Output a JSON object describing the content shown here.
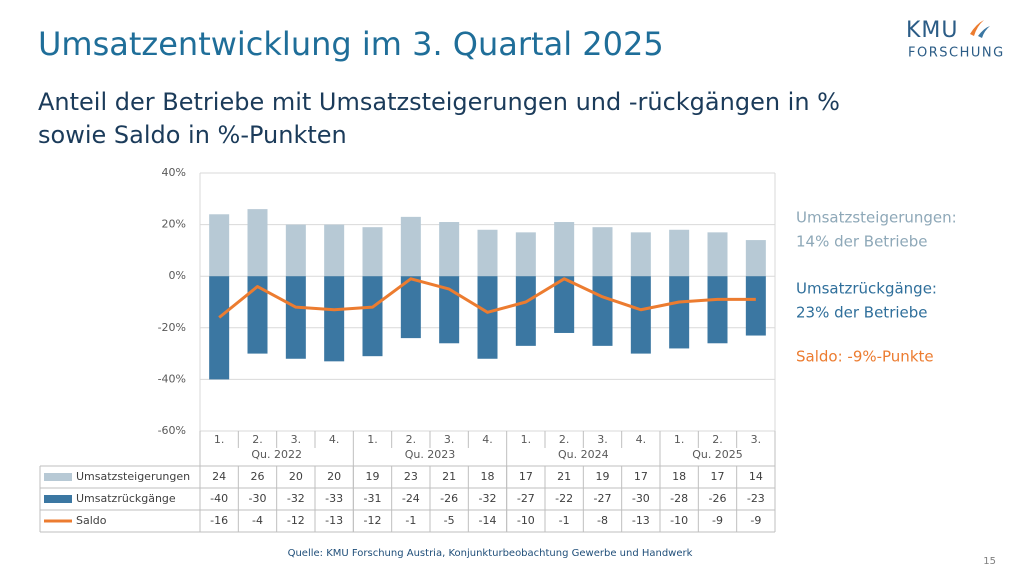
{
  "slide": {
    "title": "Umsatzentwicklung im 3. Quartal 2025",
    "subtitle": [
      "Anteil der Betriebe mit Umsatzsteigerungen und -rückgängen in %",
      "sowie Saldo in %-Punkten"
    ],
    "logo": [
      "KMU",
      "FORSCHUNG"
    ],
    "source": "Quelle: KMU Forschung Austria, Konjunkturbeobachtung Gewerbe und Handwerk",
    "page_number": "15"
  },
  "chart_data": {
    "type": "bar",
    "category_groups": [
      {
        "label": "Qu. 2022",
        "categories": [
          "1.",
          "2.",
          "3.",
          "4."
        ]
      },
      {
        "label": "Qu. 2023",
        "categories": [
          "1.",
          "2.",
          "3.",
          "4."
        ]
      },
      {
        "label": "Qu. 2024",
        "categories": [
          "1.",
          "2.",
          "3.",
          "4."
        ]
      },
      {
        "label": "Qu. 2025",
        "categories": [
          "1.",
          "2.",
          "3."
        ]
      }
    ],
    "series": [
      {
        "name": "Umsatzsteigerungen",
        "type": "bar",
        "color": "#b7c9d5",
        "values": [
          24,
          26,
          20,
          20,
          19,
          23,
          21,
          18,
          17,
          21,
          19,
          17,
          18,
          17,
          14
        ]
      },
      {
        "name": "Umsatzrückgänge",
        "type": "bar",
        "color": "#3b77a2",
        "values": [
          -40,
          -30,
          -32,
          -33,
          -31,
          -24,
          -26,
          -32,
          -27,
          -22,
          -27,
          -30,
          -28,
          -26,
          -23
        ]
      },
      {
        "name": "Saldo",
        "type": "line",
        "color": "#ec7c30",
        "values": [
          -16,
          -4,
          -12,
          -13,
          -12,
          -1,
          -5,
          -14,
          -10,
          -1,
          -8,
          -13,
          -10,
          -9,
          -9
        ]
      }
    ],
    "ylim": [
      -60,
      40
    ],
    "yticks": [
      {
        "value": -60,
        "label": "-60%"
      },
      {
        "value": -40,
        "label": "-40%"
      },
      {
        "value": -20,
        "label": "-20%"
      },
      {
        "value": 0,
        "label": "0%"
      },
      {
        "value": 20,
        "label": "20%"
      },
      {
        "value": 40,
        "label": "40%"
      }
    ],
    "grid": true,
    "annotations": [
      {
        "lines": [
          "Umsatzsteigerungen:",
          "14% der Betriebe"
        ],
        "color": "#8ea8b8"
      },
      {
        "lines": [
          "Umsatzrückgänge:",
          "23% der Betriebe"
        ],
        "color": "#2f6f9b"
      },
      {
        "lines": [
          "Saldo: -9%-Punkte"
        ],
        "color": "#ec7c30"
      }
    ]
  }
}
